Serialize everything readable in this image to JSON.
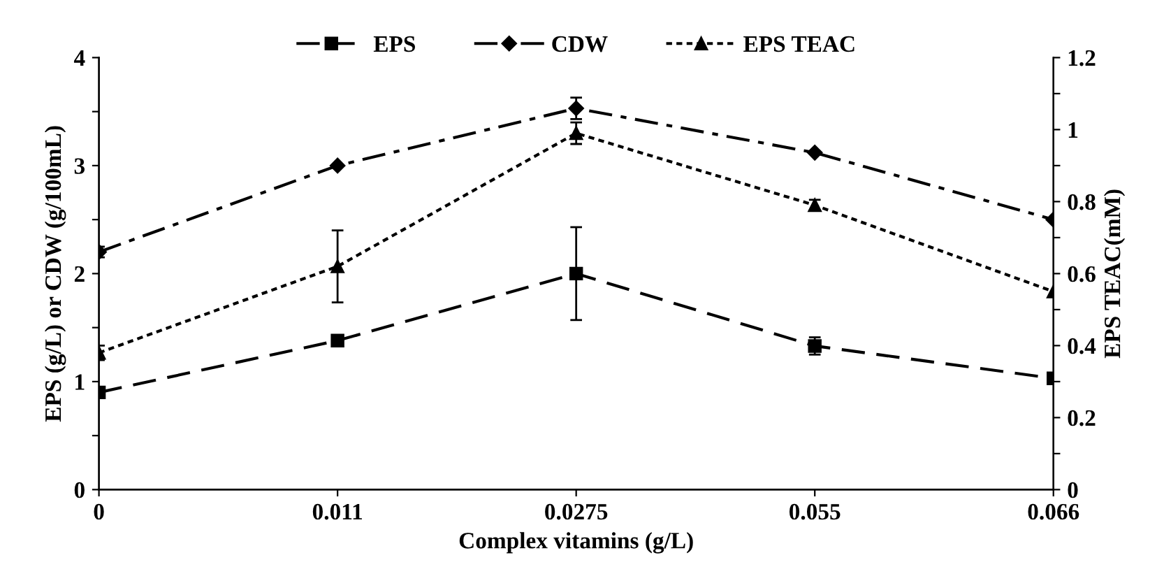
{
  "chart_data": {
    "type": "line",
    "xlabel": "Complex vitamins (g/L)",
    "ylabel": "EPS (g/L) or CDW (g/100mL)",
    "y2label": "EPS TEAC(mM)",
    "categories": [
      "0",
      "0.011",
      "0.0275",
      "0.055",
      "0.066"
    ],
    "series": [
      {
        "name": "EPS",
        "color": "#000000",
        "marker": "square",
        "line_style": "dashed",
        "values": [
          0.9,
          1.38,
          2.0,
          1.33,
          1.03
        ],
        "errors": [
          0.05,
          0.05,
          0.43,
          0.08,
          0.04
        ]
      },
      {
        "name": "CDW",
        "color": "#000000",
        "marker": "diamond",
        "line_style": "dashdot",
        "values": [
          2.2,
          3.0,
          3.53,
          3.12,
          2.5
        ],
        "errors": [
          0.05,
          null,
          0.1,
          null,
          null
        ]
      },
      {
        "name": "EPS TEAC",
        "color": "#000000",
        "marker": "triangle",
        "line_style": "dotted",
        "axis": "y2",
        "values": [
          0.38,
          0.62,
          0.99,
          0.79,
          0.55
        ],
        "errors": [
          0.02,
          0.1,
          0.03,
          0.015,
          null
        ]
      }
    ],
    "ylim": [
      0,
      4
    ],
    "yticks": [
      0,
      {
        "value": 0.5,
        "label": null
      },
      1,
      {
        "value": 1.5,
        "label": null
      },
      2,
      {
        "value": 2.5,
        "label": null
      },
      3,
      {
        "value": 3.5,
        "label": null
      },
      4
    ],
    "y2lim": [
      0,
      1.2
    ],
    "y2ticks": [
      0,
      {
        "value": 0.1,
        "label": null
      },
      0.2,
      {
        "value": 0.3,
        "label": null
      },
      0.4,
      {
        "value": 0.5,
        "label": null
      },
      0.6,
      {
        "value": 0.7,
        "label": null
      },
      0.8,
      {
        "value": 0.9,
        "label": null
      },
      1,
      {
        "value": 1.1,
        "label": null
      },
      1.2
    ],
    "grid": false,
    "legend": "top"
  }
}
